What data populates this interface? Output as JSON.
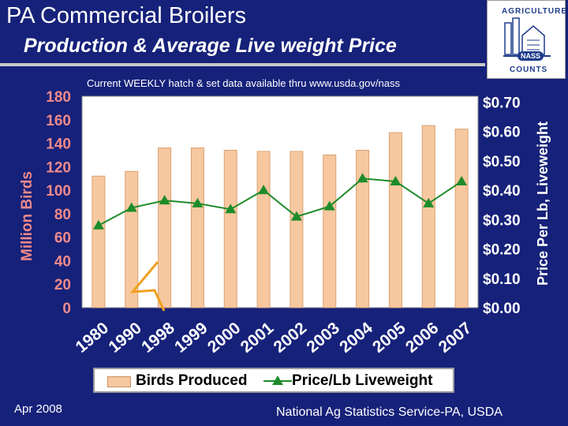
{
  "header": {
    "title": "PA Commercial Broilers",
    "subtitle": "Production & Average Live weight Price",
    "note": "Current WEEKLY hatch & set data available thru www.usda.gov/nass"
  },
  "logo": {
    "top_text": "AGRICULTURE",
    "bottom_text": "COUNTS",
    "badge": "NASS"
  },
  "footer": {
    "date": "Apr 2008",
    "agency": "National Ag Statistics Service-PA, USDA"
  },
  "colors": {
    "background": "#16217a",
    "plot_bg": "#ffffff",
    "bar": "#f7c8a0",
    "line": "#1e8c2a",
    "axis_text": "#f08a8a",
    "zigzag": "#f0a020"
  },
  "chart_data": {
    "type": "bar",
    "categories": [
      "1980",
      "1990",
      "1998",
      "1999",
      "2000",
      "2001",
      "2002",
      "2003",
      "2004",
      "2005",
      "2006",
      "2007"
    ],
    "series": [
      {
        "name": "Birds Produced",
        "axis": "left",
        "type": "bar",
        "values": [
          112,
          116,
          136,
          136,
          134,
          133,
          133,
          130,
          134,
          149,
          155,
          152
        ]
      },
      {
        "name": "Price/Lb Liveweight",
        "axis": "right",
        "type": "line",
        "values": [
          0.28,
          0.34,
          0.365,
          0.355,
          0.335,
          0.4,
          0.31,
          0.345,
          0.44,
          0.43,
          0.355,
          0.43
        ]
      }
    ],
    "ylabel": "Million Birds",
    "y2label": "Price Per Lb, Liveweight",
    "ylim": [
      0,
      180
    ],
    "y2lim": [
      0,
      0.72
    ],
    "yticks": [
      "0",
      "20",
      "40",
      "60",
      "80",
      "100",
      "120",
      "140",
      "160",
      "180"
    ],
    "y2ticks": [
      "$0.00",
      "$0.10",
      "$0.20",
      "$0.30",
      "$0.40",
      "$0.50",
      "$0.60",
      "$0.70"
    ],
    "y2tick_values": [
      0,
      0.1,
      0.2,
      0.3,
      0.4,
      0.5,
      0.6,
      0.7
    ],
    "grid": false,
    "legend": "bottom",
    "axis_break": true
  }
}
